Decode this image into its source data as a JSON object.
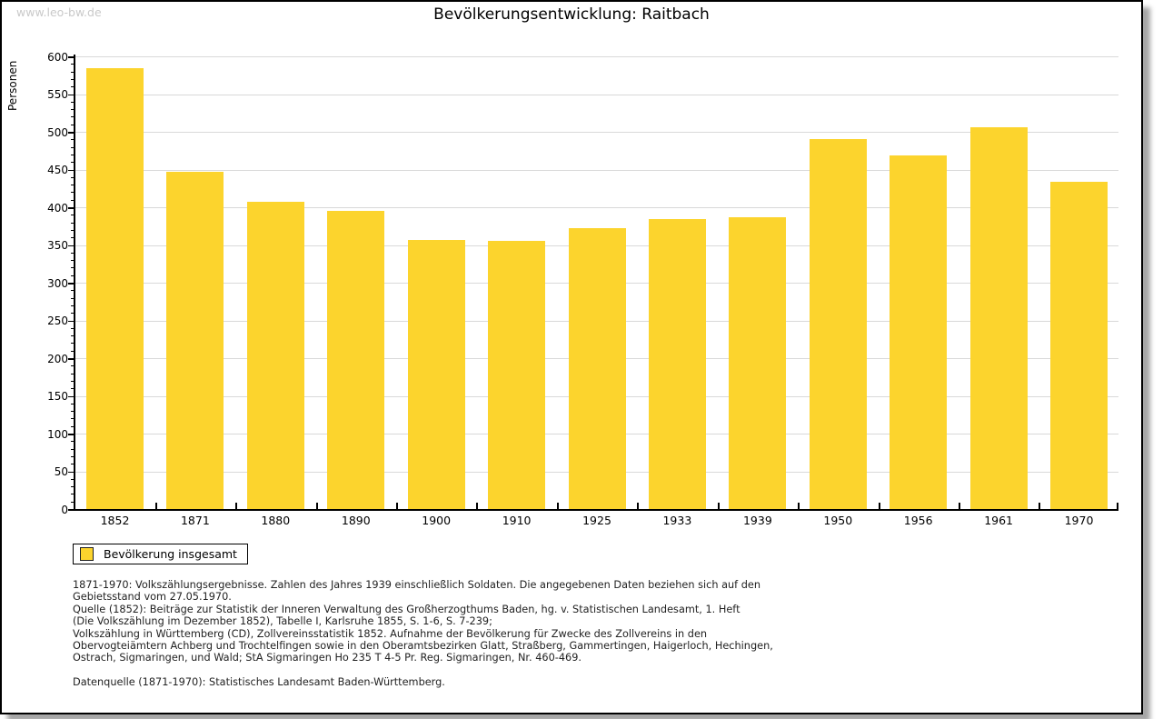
{
  "watermark": "www.leo-bw.de",
  "title": "Bevölkerungsentwicklung: Raitbach",
  "chart_data": {
    "type": "bar",
    "title": "Bevölkerungsentwicklung: Raitbach",
    "categories": [
      "1852",
      "1871",
      "1880",
      "1890",
      "1900",
      "1910",
      "1925",
      "1933",
      "1939",
      "1950",
      "1956",
      "1961",
      "1970"
    ],
    "values": [
      584,
      447,
      407,
      395,
      357,
      356,
      372,
      384,
      387,
      490,
      469,
      506,
      434
    ],
    "series_name": "Bevölkerung insgesamt",
    "xlabel": "",
    "ylabel": "Personen",
    "ylim": [
      0,
      600
    ],
    "ytick_step": 50,
    "y_minor_step": 10,
    "grid": true,
    "legend_position": "bottom-left"
  },
  "legend": {
    "label": "Bevölkerung insgesamt"
  },
  "colors": {
    "bar": "#fcd42d",
    "grid": "#d9d9d9",
    "axis": "#000000",
    "watermark": "#c9c9c9"
  },
  "footer": {
    "lines": [
      "1871-1970: Volkszählungsergebnisse. Zahlen des Jahres 1939 einschließlich Soldaten. Die angegebenen Daten beziehen sich auf den",
      "Gebietsstand vom 27.05.1970.",
      "Quelle (1852): Beiträge zur Statistik der Inneren Verwaltung des Großherzogthums Baden, hg. v. Statistischen Landesamt, 1. Heft",
      "(Die Volkszählung im Dezember 1852), Tabelle I, Karlsruhe 1855, S. 1-6, S. 7-239;",
      "Volkszählung in Württemberg (CD), Zollvereinsstatistik 1852. Aufnahme der Bevölkerung für Zwecke des Zollvereins in den",
      "Obervogteiämtern Achberg und Trochtelfingen sowie in den Oberamtsbezirken Glatt, Straßberg, Gammertingen, Haigerloch, Hechingen,",
      "Ostrach, Sigmaringen, und Wald; StA Sigmaringen Ho 235 T 4-5 Pr. Reg. Sigmaringen, Nr. 460-469."
    ],
    "datenquelle": "Datenquelle (1871-1970): Statistisches Landesamt Baden-Württemberg."
  }
}
